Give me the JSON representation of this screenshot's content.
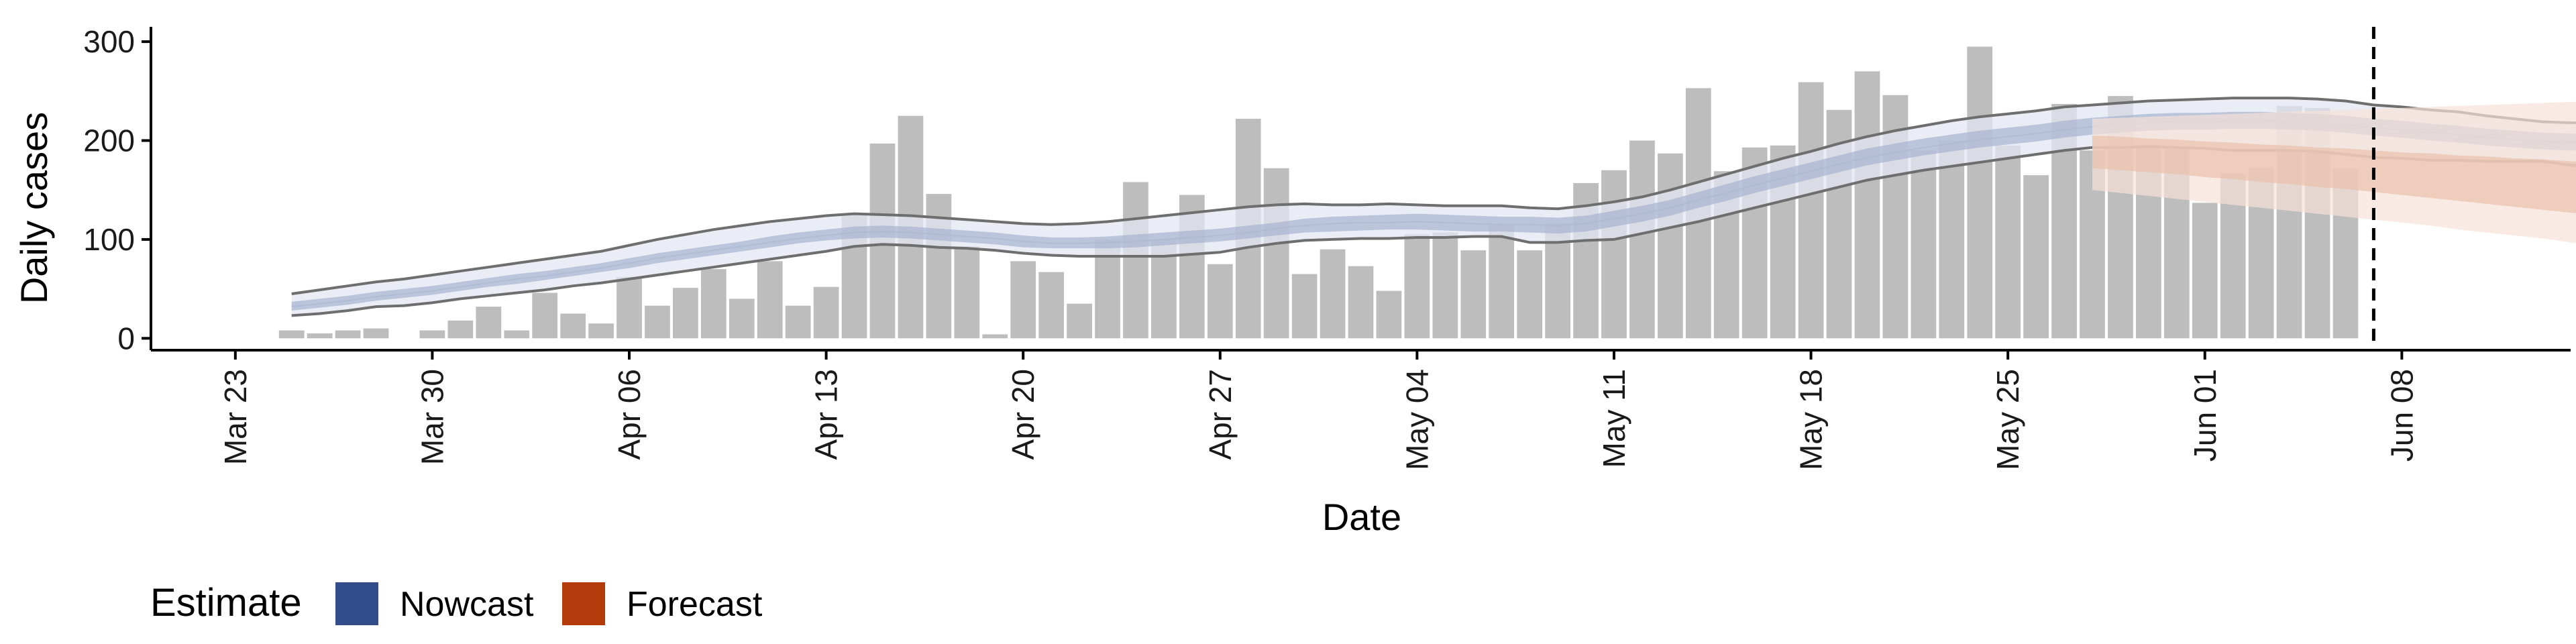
{
  "chart_data": {
    "type": "bar",
    "title": "",
    "xlabel": "Date",
    "ylabel": "Daily cases",
    "ylim": [
      -12,
      315
    ],
    "xlim": [
      "2020-03-20",
      "2020-06-14"
    ],
    "y_ticks": [
      0,
      100,
      200,
      300
    ],
    "x_ticks": [
      {
        "date": "2020-03-23",
        "label": "Mar 23"
      },
      {
        "date": "2020-03-30",
        "label": "Mar 30"
      },
      {
        "date": "2020-04-06",
        "label": "Apr 06"
      },
      {
        "date": "2020-04-13",
        "label": "Apr 13"
      },
      {
        "date": "2020-04-20",
        "label": "Apr 20"
      },
      {
        "date": "2020-04-27",
        "label": "Apr 27"
      },
      {
        "date": "2020-05-04",
        "label": "May 04"
      },
      {
        "date": "2020-05-11",
        "label": "May 11"
      },
      {
        "date": "2020-05-18",
        "label": "May 18"
      },
      {
        "date": "2020-05-25",
        "label": "May 25"
      },
      {
        "date": "2020-06-01",
        "label": "Jun 01"
      },
      {
        "date": "2020-06-08",
        "label": "Jun 08"
      }
    ],
    "grid": false,
    "legend": {
      "title": "Estimate",
      "position": "bottom-left"
    },
    "cases": {
      "start_date": "2020-03-25",
      "values": [
        8,
        5,
        8,
        10,
        0,
        8,
        18,
        32,
        8,
        46,
        25,
        15,
        62,
        33,
        51,
        70,
        40,
        78,
        33,
        52,
        126,
        197,
        225,
        146,
        93,
        4,
        78,
        67,
        35,
        100,
        158,
        100,
        145,
        75,
        222,
        172,
        65,
        90,
        73,
        48,
        105,
        107,
        89,
        114,
        89,
        116,
        157,
        170,
        200,
        187,
        253,
        169,
        193,
        195,
        259,
        231,
        270,
        246,
        190,
        200,
        295,
        195,
        165,
        237,
        190,
        245,
        197,
        193,
        137,
        167,
        173,
        235,
        233,
        172,
        0
      ]
    },
    "nowcast": {
      "start_date": "2020-03-25",
      "lower_line": [
        23,
        25,
        28,
        32,
        33,
        36,
        40,
        43,
        46,
        49,
        53,
        56,
        60,
        64,
        68,
        72,
        76,
        80,
        84,
        88,
        93,
        95,
        94,
        92,
        91,
        89,
        86,
        84,
        83,
        83,
        83,
        83,
        85,
        87,
        92,
        96,
        99,
        100,
        101,
        101,
        102,
        102,
        103,
        103,
        97,
        97,
        99,
        100,
        106,
        112,
        118,
        125,
        132,
        139,
        146,
        153,
        160,
        165,
        170,
        174,
        178,
        182,
        186,
        190,
        193,
        193,
        194,
        193,
        192,
        190,
        190,
        190,
        189,
        186,
        183,
        182,
        180,
        180,
        179,
        179,
        179,
        175,
        174,
        171,
        170,
        170,
        170,
        167,
        163
      ],
      "upper_line": [
        45,
        49,
        53,
        57,
        60,
        64,
        68,
        72,
        76,
        80,
        84,
        88,
        94,
        100,
        105,
        110,
        114,
        118,
        121,
        124,
        126,
        125,
        124,
        122,
        120,
        118,
        116,
        115,
        116,
        118,
        121,
        124,
        127,
        130,
        133,
        135,
        136,
        135,
        135,
        136,
        135,
        134,
        134,
        134,
        132,
        131,
        134,
        138,
        143,
        150,
        158,
        166,
        174,
        182,
        189,
        197,
        204,
        210,
        215,
        220,
        224,
        227,
        230,
        234,
        236,
        238,
        240,
        241,
        242,
        243,
        243,
        243,
        242,
        240,
        236,
        234,
        231,
        229,
        225,
        222,
        219,
        218,
        218,
        216,
        216,
        216,
        215,
        214,
        213
      ],
      "median": [
        32,
        35,
        38,
        42,
        45,
        48,
        52,
        56,
        60,
        63,
        67,
        71,
        76,
        81,
        85,
        89,
        93,
        97,
        101,
        104,
        107,
        108,
        107,
        105,
        103,
        101,
        98,
        96,
        96,
        97,
        98,
        100,
        102,
        104,
        107,
        111,
        114,
        116,
        117,
        117,
        118,
        117,
        116,
        115,
        115,
        114,
        116,
        121,
        126,
        132,
        140,
        147,
        155,
        162,
        169,
        176,
        183,
        188,
        193,
        197,
        201,
        204,
        207,
        211,
        214,
        216,
        218,
        219,
        219,
        220,
        220,
        219,
        218,
        216,
        213,
        211,
        208,
        206,
        203,
        201,
        199,
        198,
        198,
        196,
        195,
        194,
        193,
        191,
        189
      ],
      "inner": [
        [
          28,
          37
        ],
        [
          31,
          40
        ],
        [
          34,
          43
        ],
        [
          38,
          47
        ],
        [
          41,
          50
        ],
        [
          44,
          53
        ],
        [
          48,
          57
        ],
        [
          52,
          61
        ],
        [
          55,
          65
        ],
        [
          59,
          68
        ],
        [
          63,
          72
        ],
        [
          67,
          76
        ],
        [
          71,
          81
        ],
        [
          76,
          86
        ],
        [
          80,
          90
        ],
        [
          84,
          94
        ],
        [
          88,
          98
        ],
        [
          92,
          103
        ],
        [
          96,
          107
        ],
        [
          99,
          110
        ],
        [
          101,
          113
        ],
        [
          102,
          114
        ],
        [
          101,
          113
        ],
        [
          99,
          111
        ],
        [
          97,
          109
        ],
        [
          95,
          107
        ],
        [
          92,
          104
        ],
        [
          91,
          102
        ],
        [
          91,
          102
        ],
        [
          91,
          103
        ],
        [
          92,
          105
        ],
        [
          94,
          107
        ],
        [
          96,
          109
        ],
        [
          98,
          111
        ],
        [
          101,
          114
        ],
        [
          104,
          117
        ],
        [
          107,
          121
        ],
        [
          108,
          123
        ],
        [
          109,
          124
        ],
        [
          110,
          125
        ],
        [
          110,
          126
        ],
        [
          109,
          125
        ],
        [
          108,
          124
        ],
        [
          108,
          123
        ],
        [
          107,
          123
        ],
        [
          106,
          122
        ],
        [
          108,
          124
        ],
        [
          113,
          129
        ],
        [
          118,
          134
        ],
        [
          124,
          140
        ],
        [
          132,
          148
        ],
        [
          139,
          156
        ],
        [
          147,
          164
        ],
        [
          154,
          171
        ],
        [
          161,
          178
        ],
        [
          168,
          185
        ],
        [
          175,
          192
        ],
        [
          180,
          197
        ],
        [
          185,
          202
        ],
        [
          189,
          206
        ],
        [
          193,
          210
        ],
        [
          196,
          213
        ],
        [
          199,
          216
        ],
        [
          203,
          220
        ],
        [
          206,
          223
        ],
        [
          208,
          225
        ],
        [
          210,
          227
        ],
        [
          211,
          228
        ],
        [
          211,
          228
        ],
        [
          212,
          229
        ],
        [
          212,
          229
        ],
        [
          211,
          228
        ],
        [
          210,
          227
        ],
        [
          208,
          225
        ],
        [
          205,
          222
        ],
        [
          203,
          220
        ],
        [
          200,
          217
        ],
        [
          198,
          215
        ],
        [
          195,
          212
        ],
        [
          193,
          210
        ],
        [
          191,
          208
        ],
        [
          190,
          207
        ],
        [
          190,
          207
        ],
        [
          188,
          205
        ],
        [
          187,
          204
        ],
        [
          186,
          203
        ],
        [
          185,
          202
        ],
        [
          183,
          200
        ],
        [
          181,
          198
        ]
      ],
      "outer": [
        [
          23,
          45
        ],
        [
          25,
          49
        ],
        [
          28,
          53
        ],
        [
          32,
          57
        ],
        [
          33,
          60
        ],
        [
          36,
          64
        ],
        [
          40,
          68
        ],
        [
          43,
          72
        ],
        [
          46,
          76
        ],
        [
          49,
          80
        ],
        [
          53,
          84
        ],
        [
          56,
          88
        ],
        [
          60,
          94
        ],
        [
          64,
          100
        ],
        [
          68,
          105
        ],
        [
          72,
          110
        ],
        [
          76,
          114
        ],
        [
          80,
          118
        ],
        [
          84,
          121
        ],
        [
          88,
          124
        ],
        [
          93,
          126
        ],
        [
          95,
          125
        ],
        [
          94,
          124
        ],
        [
          92,
          122
        ],
        [
          91,
          120
        ],
        [
          89,
          118
        ],
        [
          86,
          116
        ],
        [
          84,
          115
        ],
        [
          83,
          116
        ],
        [
          83,
          118
        ],
        [
          83,
          121
        ],
        [
          83,
          124
        ],
        [
          85,
          127
        ],
        [
          87,
          130
        ],
        [
          92,
          133
        ],
        [
          96,
          135
        ],
        [
          99,
          136
        ],
        [
          100,
          135
        ],
        [
          101,
          135
        ],
        [
          101,
          136
        ],
        [
          102,
          135
        ],
        [
          102,
          134
        ],
        [
          103,
          134
        ],
        [
          103,
          134
        ],
        [
          97,
          132
        ],
        [
          97,
          131
        ],
        [
          99,
          134
        ],
        [
          100,
          138
        ],
        [
          106,
          143
        ],
        [
          112,
          150
        ],
        [
          118,
          158
        ],
        [
          125,
          166
        ],
        [
          132,
          174
        ],
        [
          139,
          182
        ],
        [
          146,
          189
        ],
        [
          153,
          197
        ],
        [
          160,
          204
        ],
        [
          165,
          210
        ],
        [
          170,
          215
        ],
        [
          174,
          220
        ],
        [
          178,
          224
        ],
        [
          182,
          227
        ],
        [
          186,
          230
        ],
        [
          190,
          234
        ],
        [
          193,
          236
        ],
        [
          193,
          238
        ],
        [
          194,
          240
        ],
        [
          193,
          241
        ],
        [
          192,
          242
        ],
        [
          190,
          243
        ],
        [
          190,
          243
        ],
        [
          190,
          243
        ],
        [
          189,
          242
        ],
        [
          186,
          240
        ],
        [
          183,
          236
        ],
        [
          182,
          234
        ],
        [
          180,
          231
        ],
        [
          180,
          229
        ],
        [
          179,
          225
        ],
        [
          179,
          222
        ],
        [
          179,
          219
        ],
        [
          175,
          218
        ],
        [
          174,
          218
        ],
        [
          171,
          216
        ],
        [
          170,
          216
        ],
        [
          170,
          216
        ],
        [
          170,
          215
        ],
        [
          167,
          214
        ],
        [
          163,
          213
        ]
      ]
    },
    "forecast": {
      "start_date": "2020-05-28",
      "median": [
        190,
        188,
        186,
        184,
        182,
        180,
        178,
        176,
        174,
        172,
        170,
        167,
        165,
        162,
        160,
        157,
        155,
        152,
        150,
        147,
        144,
        141,
        138,
        135,
        132,
        129,
        126,
        123,
        121,
        119,
        117,
        115,
        113,
        111,
        110,
        108,
        105
      ],
      "inner": [
        [
          172,
          205
        ],
        [
          170,
          204
        ],
        [
          168,
          202
        ],
        [
          166,
          201
        ],
        [
          163,
          199
        ],
        [
          161,
          198
        ],
        [
          158,
          196
        ],
        [
          156,
          195
        ],
        [
          153,
          193
        ],
        [
          151,
          192
        ],
        [
          148,
          190
        ],
        [
          145,
          188
        ],
        [
          142,
          187
        ],
        [
          139,
          185
        ],
        [
          136,
          184
        ],
        [
          133,
          182
        ],
        [
          130,
          181
        ],
        [
          127,
          179
        ],
        [
          124,
          178
        ],
        [
          121,
          176
        ],
        [
          118,
          175
        ],
        [
          115,
          173
        ],
        [
          112,
          172
        ],
        [
          109,
          170
        ],
        [
          106,
          169
        ],
        [
          103,
          168
        ],
        [
          100,
          167
        ],
        [
          97,
          166
        ],
        [
          95,
          165
        ],
        [
          93,
          164
        ],
        [
          92,
          163
        ],
        [
          91,
          162
        ],
        [
          91,
          162
        ],
        [
          93,
          163
        ],
        [
          95,
          165
        ],
        [
          98,
          166
        ],
        [
          103,
          168
        ]
      ],
      "outer": [
        [
          150,
          222
        ],
        [
          147,
          223
        ],
        [
          144,
          224
        ],
        [
          141,
          225
        ],
        [
          138,
          226
        ],
        [
          135,
          227
        ],
        [
          132,
          228
        ],
        [
          129,
          229
        ],
        [
          126,
          230
        ],
        [
          123,
          231
        ],
        [
          120,
          232
        ],
        [
          117,
          233
        ],
        [
          114,
          234
        ],
        [
          110,
          235
        ],
        [
          107,
          236
        ],
        [
          104,
          237
        ],
        [
          101,
          238
        ],
        [
          97,
          239
        ],
        [
          94,
          240
        ],
        [
          90,
          241
        ],
        [
          87,
          242
        ],
        [
          84,
          243
        ],
        [
          80,
          243
        ],
        [
          77,
          243
        ],
        [
          74,
          243
        ],
        [
          71,
          243
        ],
        [
          68,
          243
        ],
        [
          66,
          243
        ],
        [
          64,
          243
        ],
        [
          62,
          243
        ],
        [
          61,
          243
        ],
        [
          60,
          243
        ],
        [
          61,
          243
        ],
        [
          62,
          243
        ],
        [
          64,
          243
        ],
        [
          67,
          243
        ],
        [
          70,
          243
        ]
      ]
    },
    "vline_date": "2020-06-07",
    "series": [
      {
        "name": "Nowcast",
        "color": "#334C8A"
      },
      {
        "name": "Forecast",
        "color": "#B33A0A"
      }
    ],
    "colors": {
      "bars": "#BDBDBD",
      "nowcast_inner": "#A9B5D1",
      "nowcast_outer": "#E3E7F1",
      "nowcast_lines": "#6E6E6E",
      "forecast_inner": "#E9C1AC",
      "forecast_outer": "#F7E2D7",
      "axis": "#000000"
    }
  }
}
